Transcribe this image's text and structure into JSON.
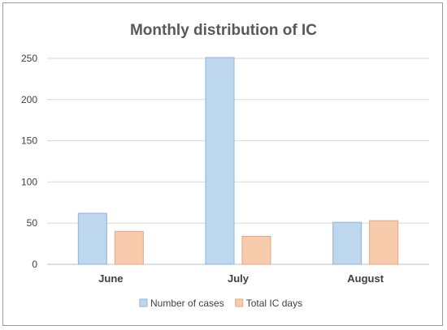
{
  "chart_data": {
    "type": "bar",
    "title": "Monthly distribution of IC",
    "xlabel": "",
    "ylabel": "",
    "categories": [
      "June",
      "July",
      "August"
    ],
    "series": [
      {
        "name": "Number of cases",
        "values": [
          62,
          251,
          51
        ],
        "color": "#BDD7EE",
        "stroke": "#8FB4D9"
      },
      {
        "name": "Total IC days",
        "values": [
          40,
          34,
          53
        ],
        "color": "#F8CBAD",
        "stroke": "#E0A882"
      }
    ],
    "ylim": [
      0,
      250
    ],
    "yticks": [
      0,
      50,
      100,
      150,
      200,
      250
    ],
    "grid": true,
    "legend": "bottom",
    "colors": {
      "gridline": "#D9D9D9",
      "axis": "#BFBFBF"
    }
  }
}
